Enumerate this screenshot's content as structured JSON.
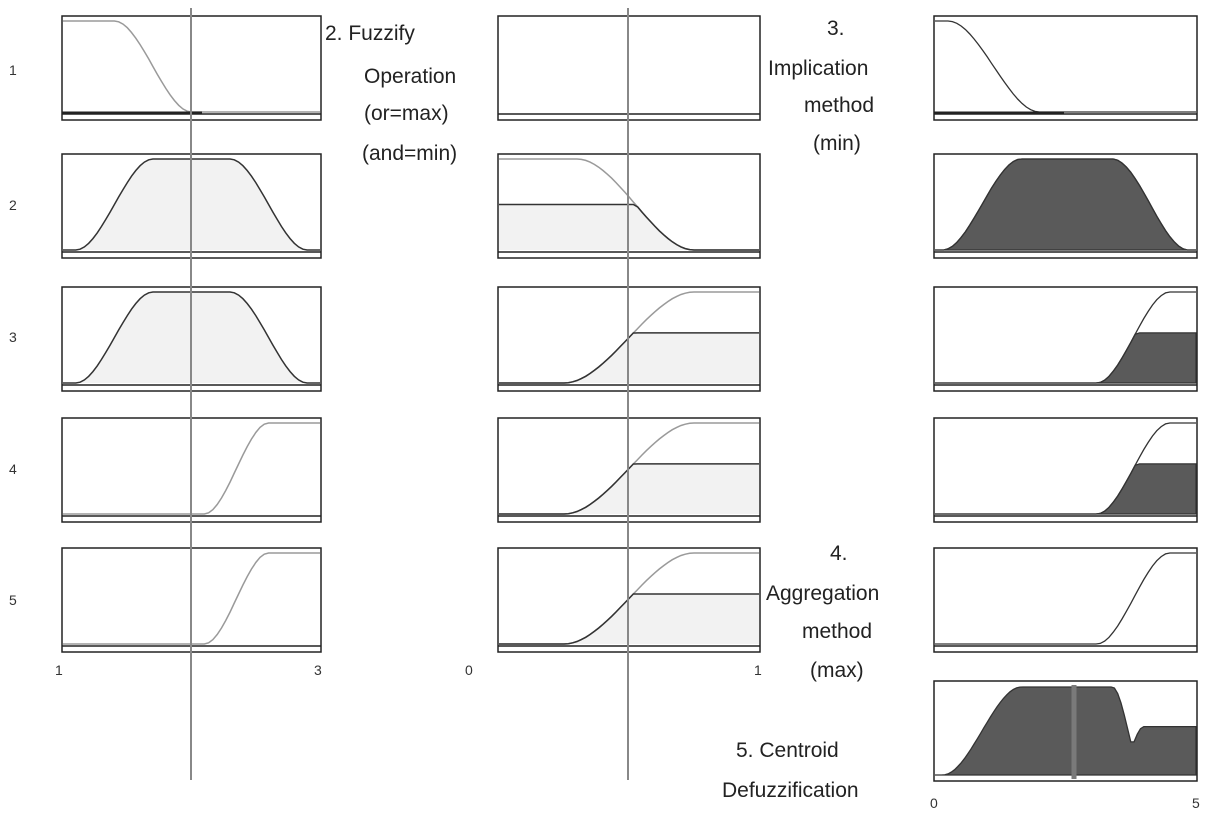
{
  "rule_numbers": [
    "1",
    "2",
    "3",
    "4",
    "5"
  ],
  "input_axis": {
    "min_label": "1",
    "max_label": "3"
  },
  "operation_axis": {
    "min_label": "0",
    "max_label": "1"
  },
  "output_axis": {
    "min_label": "0",
    "max_label": "5"
  },
  "steps": {
    "fuzzify": [
      "2.  Fuzzify",
      "Operation",
      "(or=max)",
      "(and=min)"
    ],
    "implication": [
      "3.",
      "Implication",
      "method",
      "(min)"
    ],
    "aggregation": [
      "4.",
      "Aggregation",
      "method",
      "(max)"
    ],
    "defuzz": [
      "5. Centroid",
      "Defuzzification"
    ]
  },
  "colors": {
    "frame": "#222222",
    "curve_light": "#9a9a9a",
    "curve_dark": "#333333",
    "fill_light": "#f2f2f2",
    "fill_dark": "#5a5a5a",
    "line": "#888888"
  }
}
